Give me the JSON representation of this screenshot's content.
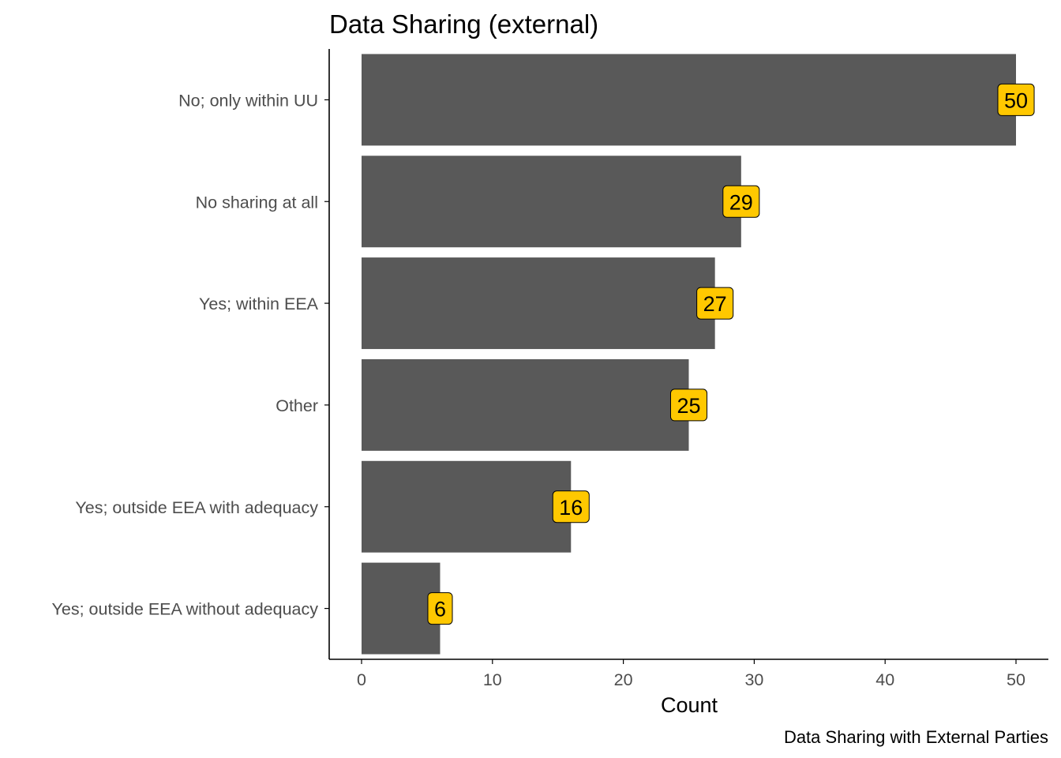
{
  "chart_data": {
    "type": "bar",
    "orientation": "horizontal",
    "title": "Data Sharing (external)",
    "caption": "Data Sharing with External Parties",
    "xlabel": "Count",
    "ylabel": "",
    "categories": [
      "No; only within UU",
      "No sharing at all",
      "Yes; within EEA",
      "Other",
      "Yes; outside EEA with adequacy",
      "Yes; outside EEA without adequacy"
    ],
    "values": [
      50,
      29,
      27,
      25,
      16,
      6
    ],
    "data_labels": [
      "50",
      "29",
      "27",
      "25",
      "16",
      "6"
    ],
    "xlim": [
      0,
      52.4
    ],
    "xticks": [
      0,
      10,
      20,
      30,
      40,
      50
    ],
    "xtick_labels": [
      "0",
      "10",
      "20",
      "30",
      "40",
      "50"
    ],
    "grid": false,
    "legend": "none",
    "colors": {
      "bar": "#595959",
      "label_fill": "#ffc800",
      "label_border": "#000000",
      "axis": "#000000",
      "tick_text": "#4d4d4d"
    }
  }
}
